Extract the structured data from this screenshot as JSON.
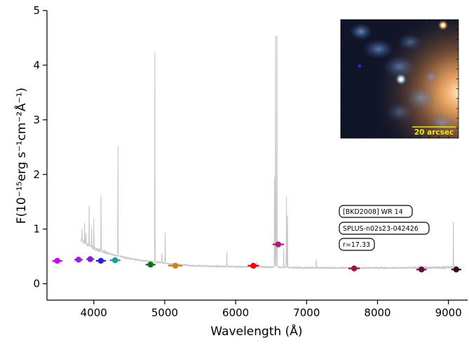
{
  "chart_data": {
    "type": "scatter",
    "xlabel": "Wavelength (Å)",
    "ylabel": "F(10⁻¹⁵erg s⁻¹cm⁻²Å⁻¹)",
    "xlim": [
      3340,
      9270
    ],
    "ylim": [
      -0.3,
      5.0
    ],
    "x_ticks": [
      4000,
      5000,
      6000,
      7000,
      8000,
      9000
    ],
    "y_ticks": [
      0,
      1,
      2,
      3,
      4,
      5
    ],
    "grid": false,
    "spectrum": {
      "color": "#c8c8c8",
      "continuum": [
        [
          3820,
          0.8
        ],
        [
          3900,
          0.72
        ],
        [
          4000,
          0.65
        ],
        [
          4100,
          0.6
        ],
        [
          4300,
          0.52
        ],
        [
          4500,
          0.46
        ],
        [
          4700,
          0.42
        ],
        [
          4900,
          0.39
        ],
        [
          5100,
          0.36
        ],
        [
          5400,
          0.33
        ],
        [
          5700,
          0.32
        ],
        [
          6000,
          0.31
        ],
        [
          6300,
          0.31
        ],
        [
          6600,
          0.3
        ],
        [
          7000,
          0.29
        ],
        [
          7500,
          0.29
        ],
        [
          8000,
          0.29
        ],
        [
          8500,
          0.29
        ],
        [
          9000,
          0.3
        ],
        [
          9120,
          0.3
        ]
      ],
      "emission_lines": [
        [
          3835,
          1.0
        ],
        [
          3870,
          1.1
        ],
        [
          3890,
          0.95
        ],
        [
          3935,
          1.5
        ],
        [
          3970,
          1.05
        ],
        [
          4000,
          1.2
        ],
        [
          4101,
          1.72
        ],
        [
          4340,
          2.52
        ],
        [
          4861,
          4.65
        ],
        [
          4959,
          0.58
        ],
        [
          5007,
          0.98
        ],
        [
          5876,
          0.6
        ],
        [
          6300,
          0.4
        ],
        [
          6548,
          1.95
        ],
        [
          6563,
          5.0
        ],
        [
          6583,
          5.0
        ],
        [
          6678,
          0.65
        ],
        [
          6716,
          1.6
        ],
        [
          6731,
          1.35
        ],
        [
          7136,
          0.45
        ],
        [
          9069,
          1.2
        ]
      ]
    },
    "series": [
      {
        "color": "#cc00ff",
        "x": 3485,
        "y": 0.42,
        "xerr": 70
      },
      {
        "color": "#9a1fe0",
        "x": 3785,
        "y": 0.44,
        "xerr": 60
      },
      {
        "color": "#7a1fe0",
        "x": 3950,
        "y": 0.45,
        "xerr": 55
      },
      {
        "color": "#2222e8",
        "x": 4100,
        "y": 0.42,
        "xerr": 70
      },
      {
        "color": "#14a0a0",
        "x": 4300,
        "y": 0.43,
        "xerr": 75
      },
      {
        "color": "#0d6e0d",
        "x": 4800,
        "y": 0.35,
        "xerr": 70
      },
      {
        "color": "#d08218",
        "x": 5150,
        "y": 0.33,
        "xerr": 100
      },
      {
        "color": "#ff0000",
        "x": 6250,
        "y": 0.33,
        "xerr": 80
      },
      {
        "color": "#c0107e",
        "x": 6600,
        "y": 0.72,
        "xerr": 80
      },
      {
        "color": "#a0103c",
        "x": 7670,
        "y": 0.28,
        "xerr": 80
      },
      {
        "color": "#6a0a3a",
        "x": 8620,
        "y": 0.26,
        "xerr": 70
      },
      {
        "color": "#3a0a2a",
        "x": 9110,
        "y": 0.26,
        "xerr": 70
      }
    ],
    "annotations": [
      "[BKD2008] WR  14",
      "SPLUS-n02s23-042426",
      "r=17.33"
    ],
    "inset": {
      "scale_label": "20 arcsec",
      "scale_color": "#f2e600"
    }
  }
}
